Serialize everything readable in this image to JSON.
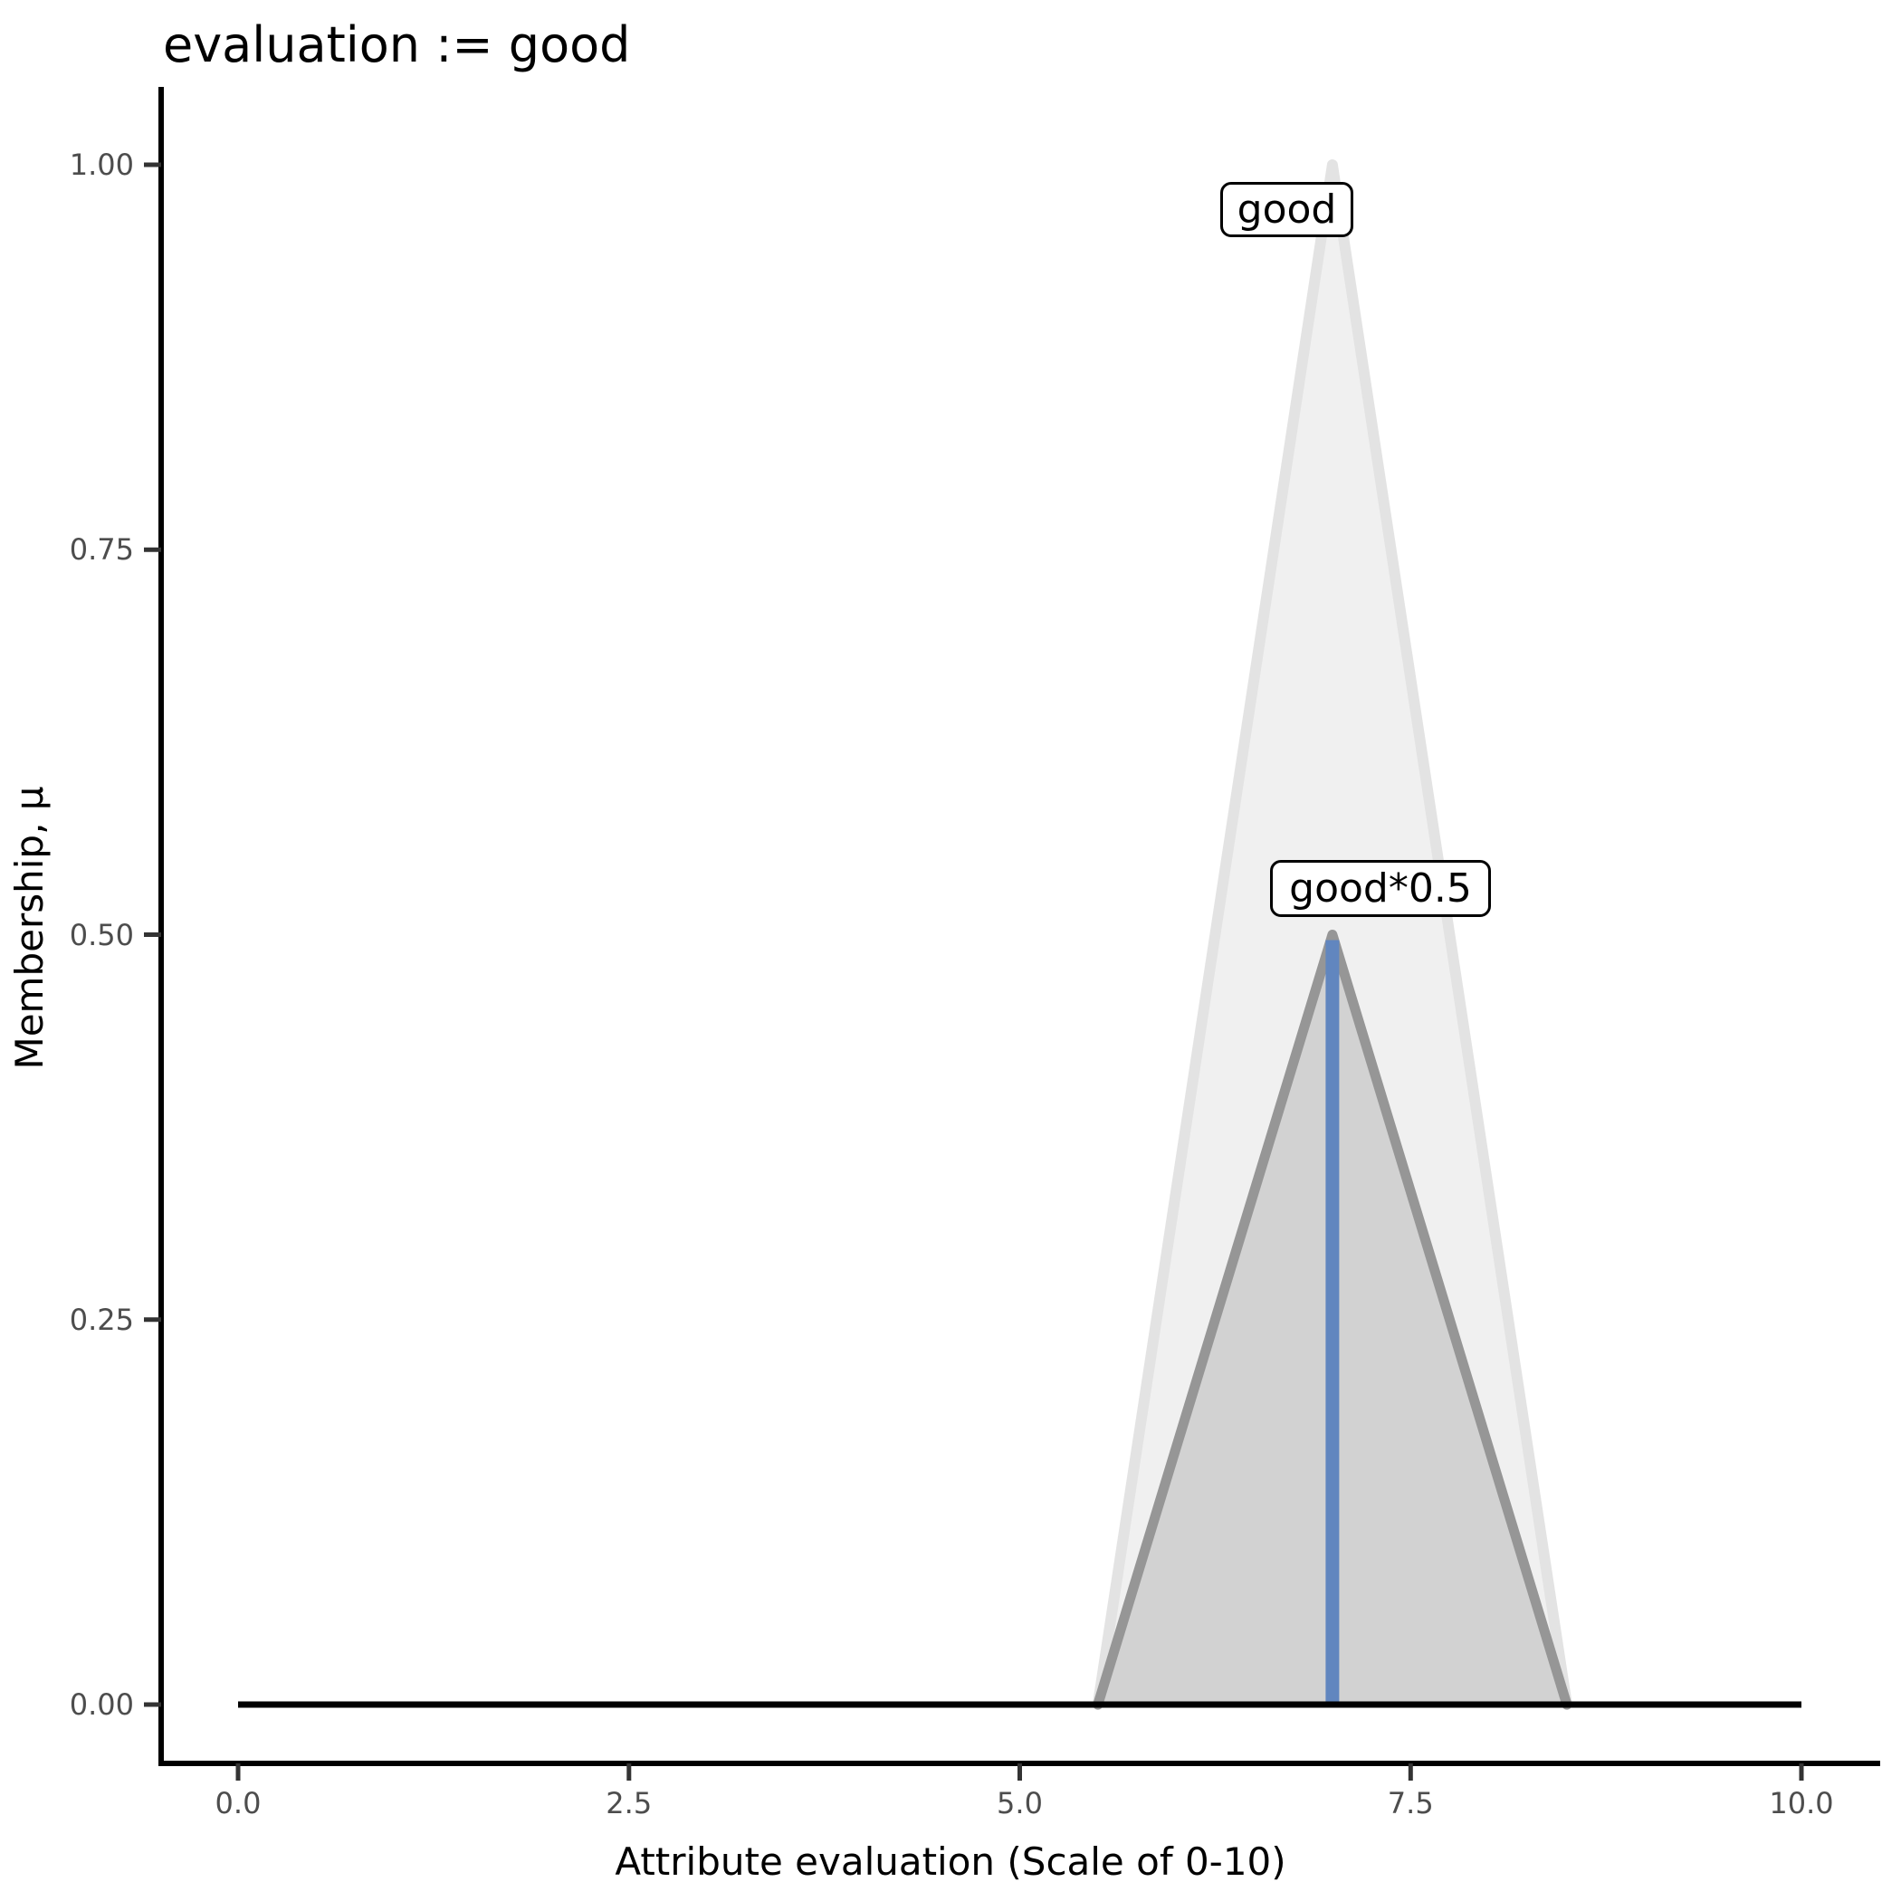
{
  "chart": {
    "title": "evaluation := good",
    "x_axis": {
      "label": "Attribute evaluation (Scale of 0-10)",
      "tick_labels": [
        "0.0",
        "2.5",
        "5.0",
        "7.5",
        "10.0"
      ]
    },
    "y_axis": {
      "label": "Membership, μ",
      "tick_labels": [
        "1.00",
        "0.75",
        "0.50",
        "0.25",
        "0.00"
      ]
    },
    "annotations": {
      "good_label": "good",
      "good_scaled_label": "good*0.5"
    }
  },
  "chart_data": {
    "type": "area",
    "title": "evaluation := good",
    "xlabel": "Attribute evaluation (Scale of 0-10)",
    "ylabel": "Membership, μ",
    "xlim": [
      0,
      10
    ],
    "ylim": [
      0,
      1
    ],
    "x_ticks": [
      0,
      2.5,
      5,
      7.5,
      10
    ],
    "y_ticks": [
      1.0,
      0.75,
      0.5,
      0.25,
      0.0
    ],
    "grid": false,
    "legend": "none",
    "series": [
      {
        "id": "good",
        "name": "good",
        "description": "triangular membership function, peak mu=1 at x=7, support 5.5 to 8.5",
        "points": [
          [
            5.5,
            0
          ],
          [
            7,
            1
          ],
          [
            8.5,
            0
          ]
        ],
        "fill": "#f0f0f0",
        "stroke": "#e3e3e3",
        "stroke_width": 12
      },
      {
        "id": "good-scaled",
        "name": "good*0.5",
        "description": "membership scaled by 0.5, peak mu=0.5 at x=7, support 5.5 to 8.5",
        "points": [
          [
            5.5,
            0
          ],
          [
            7,
            0.5
          ],
          [
            8.5,
            0
          ]
        ],
        "fill": "#d2d2d2",
        "stroke": "#969696",
        "stroke_width": 11
      }
    ],
    "defuzz_line": {
      "x": 7,
      "mu_from": 0,
      "mu_to": 0.5,
      "color": "#6186bf",
      "width": 15
    },
    "baseline": {
      "mu": 0,
      "x_from": 0,
      "x_to": 10,
      "color": "#000000",
      "width": 7
    },
    "annotations": [
      {
        "text": "good",
        "x": 7,
        "y": 1.0
      },
      {
        "text": "good*0.5",
        "x": 7,
        "y": 0.5
      }
    ],
    "axis_color": "#000000",
    "tick_color": "#333333",
    "tick_label_color": "#4d4d4d"
  }
}
